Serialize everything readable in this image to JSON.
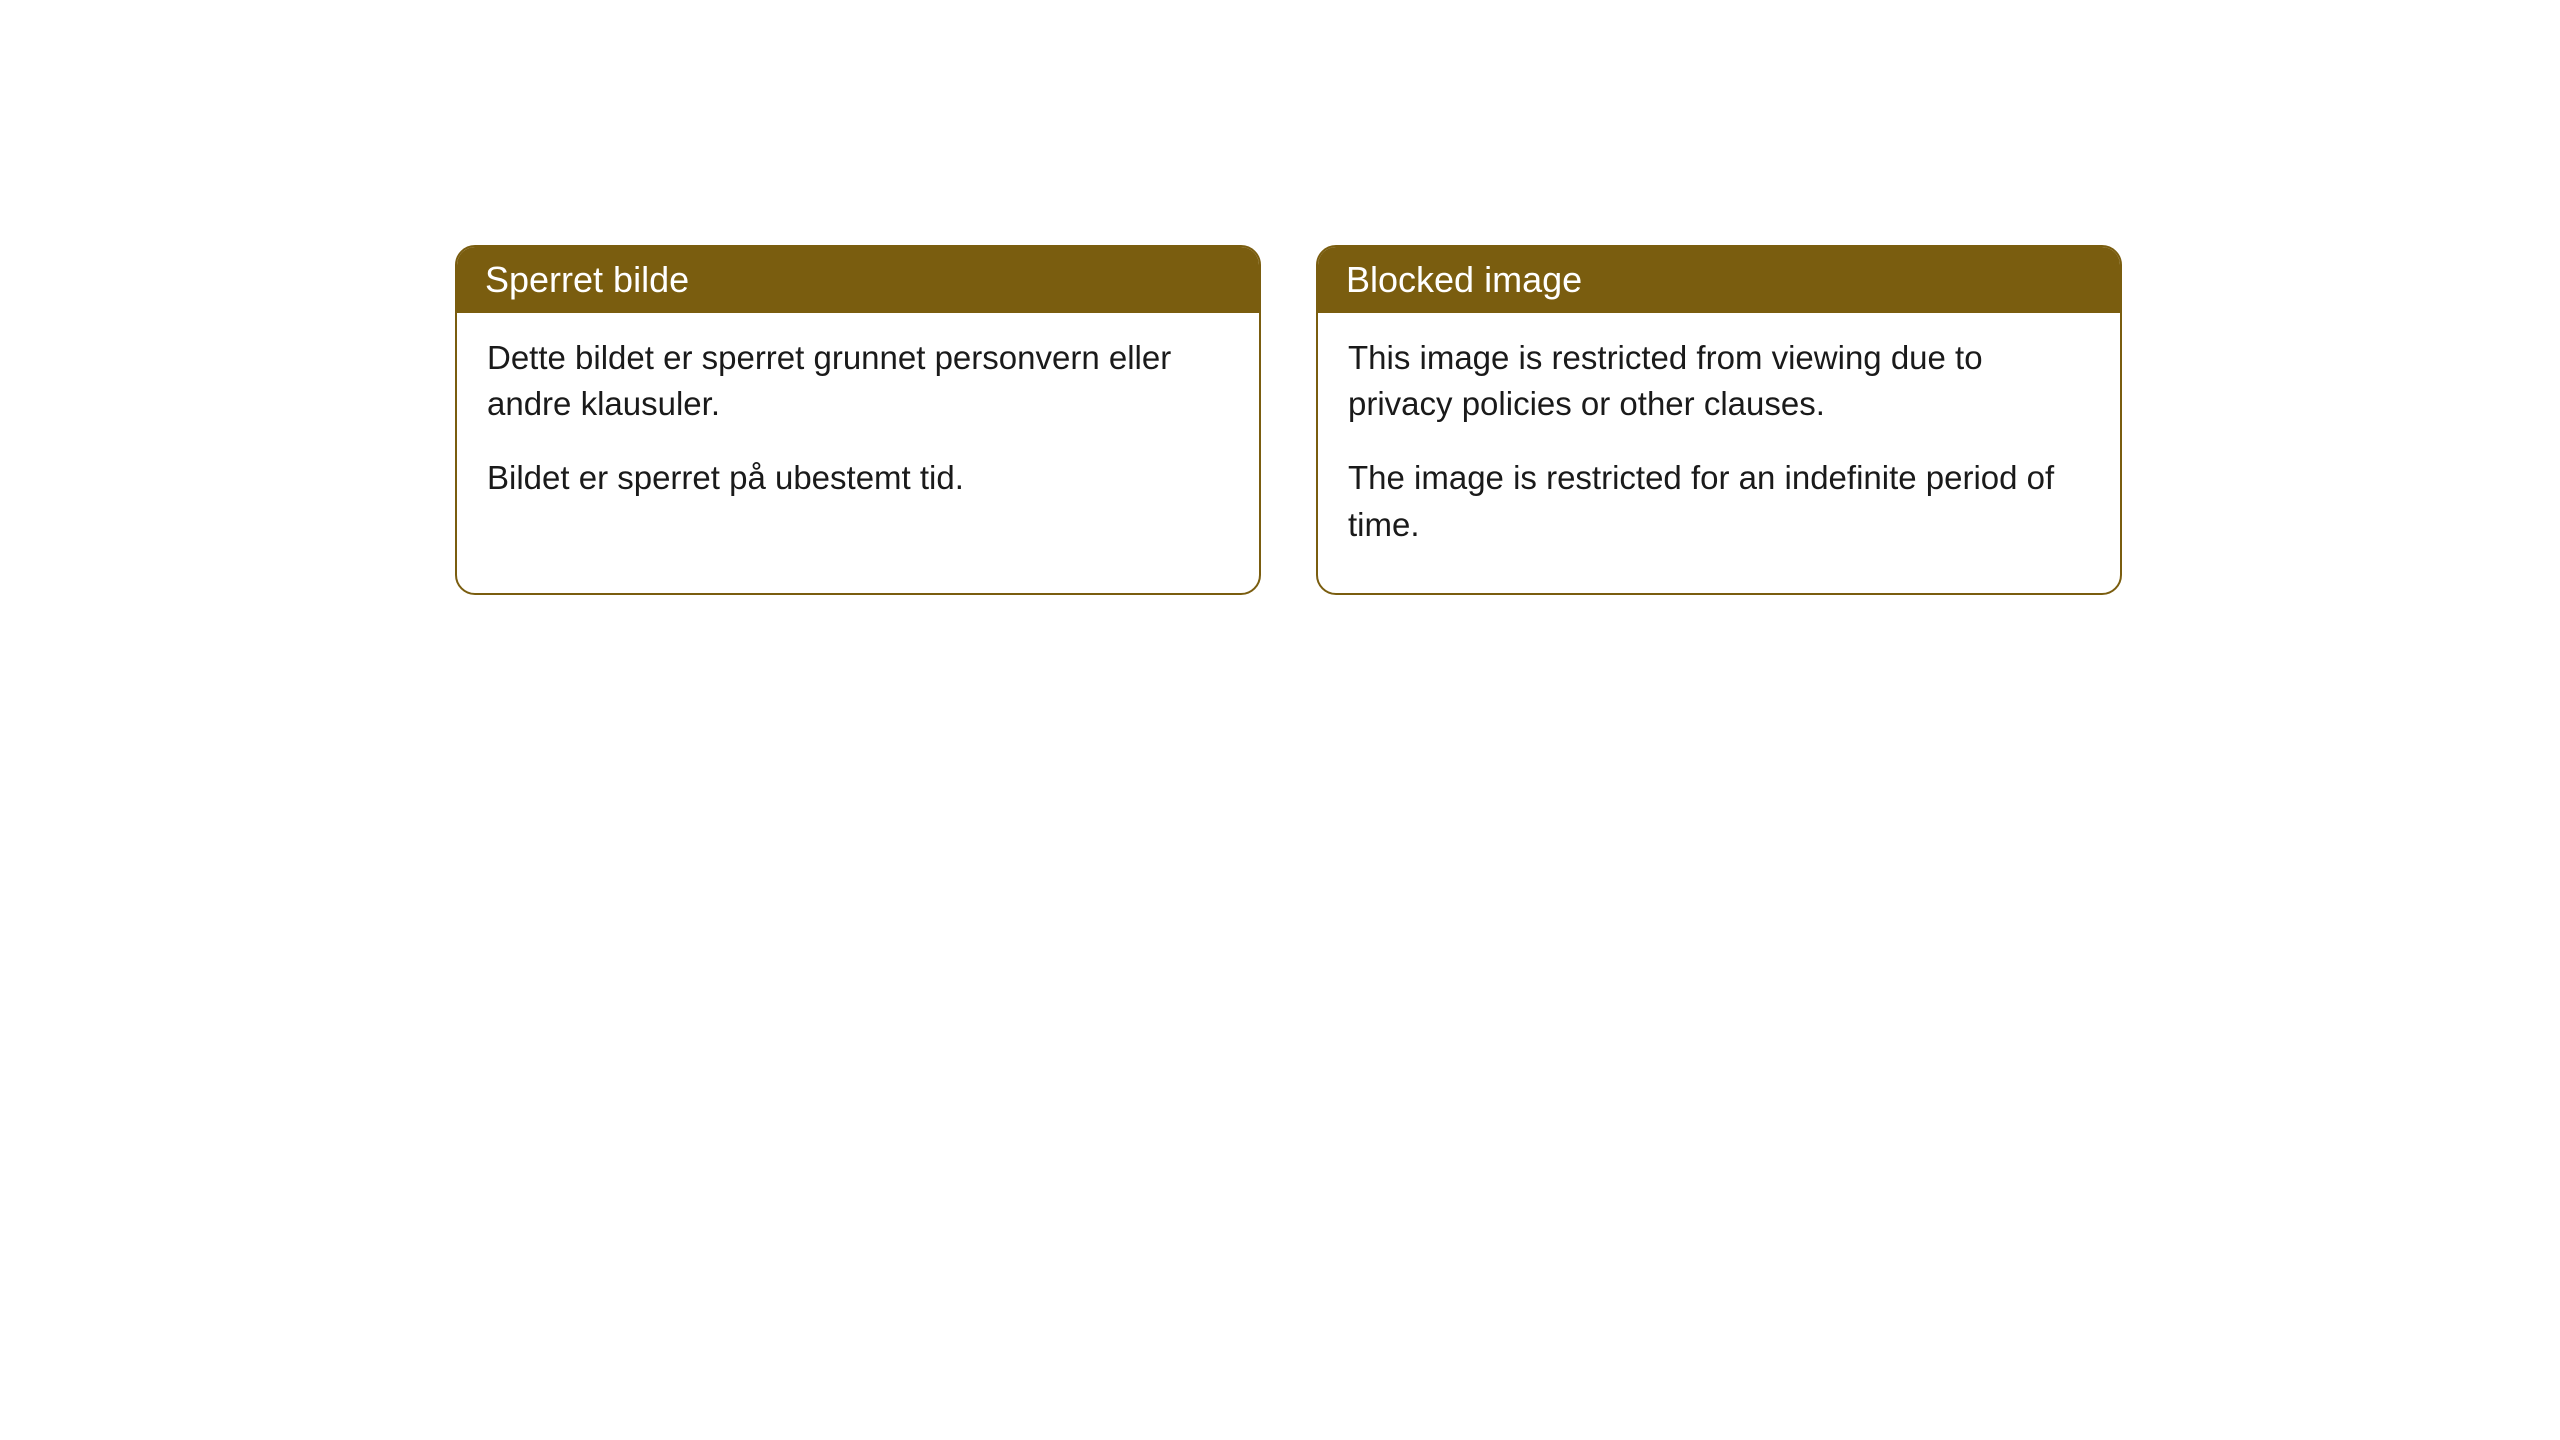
{
  "cards": [
    {
      "title": "Sperret bilde",
      "paragraph1": "Dette bildet er sperret grunnet personvern eller andre klausuler.",
      "paragraph2": "Bildet er sperret på ubestemt tid."
    },
    {
      "title": "Blocked image",
      "paragraph1": "This image is restricted from viewing due to privacy policies or other clauses.",
      "paragraph2": "The image is restricted for an indefinite period of time."
    }
  ],
  "styling": {
    "header_bg_color": "#7a5d0f",
    "header_text_color": "#ffffff",
    "border_color": "#7a5d0f",
    "body_text_color": "#1a1a1a",
    "background_color": "#ffffff",
    "border_radius": 20,
    "title_fontsize": 36,
    "body_fontsize": 33
  }
}
